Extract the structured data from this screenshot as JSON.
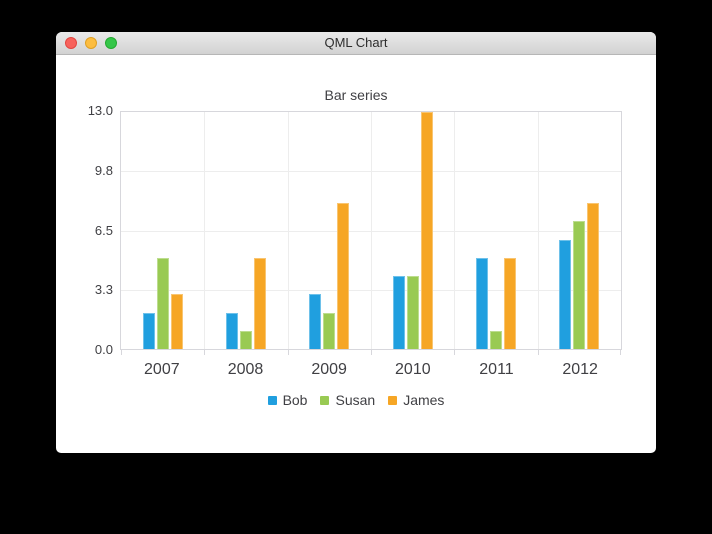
{
  "window": {
    "title": "QML Chart",
    "controls": [
      {
        "name": "close",
        "color": "#f7625c",
        "border": "#e24640"
      },
      {
        "name": "minimize",
        "color": "#fcbd40",
        "border": "#dfa023"
      },
      {
        "name": "zoom",
        "color": "#35c649",
        "border": "#24a930"
      }
    ]
  },
  "chart_data": {
    "type": "bar",
    "title": "Bar series",
    "categories": [
      "2007",
      "2008",
      "2009",
      "2010",
      "2011",
      "2012"
    ],
    "series": [
      {
        "name": "Bob",
        "color": "#209fdf",
        "values": [
          2,
          2,
          3,
          4,
          5,
          6
        ]
      },
      {
        "name": "Susan",
        "color": "#99ca53",
        "values": [
          5,
          1,
          2,
          4,
          1,
          7
        ]
      },
      {
        "name": "James",
        "color": "#f6a625",
        "values": [
          3,
          5,
          8,
          13,
          5,
          8
        ]
      }
    ],
    "y_axis": {
      "ticks": [
        "13.0",
        "9.8",
        "6.5",
        "3.3",
        "0.0"
      ],
      "min": 0,
      "max": 13
    },
    "grid": true,
    "legend_position": "bottom",
    "background": "#ffffff",
    "label_color": "#404044",
    "grid_color": "#ededed",
    "axis_color": "#d7d7dc"
  }
}
